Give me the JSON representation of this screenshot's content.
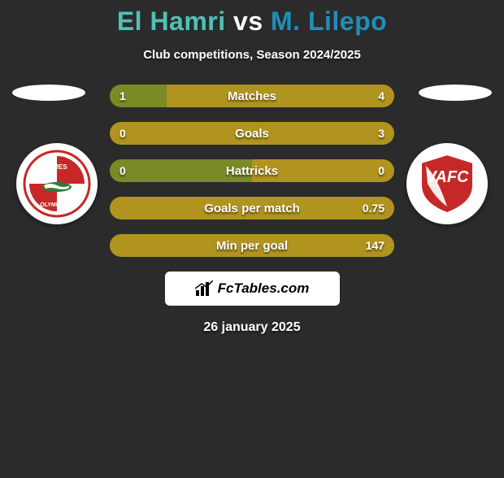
{
  "title": {
    "player1": "El Hamri",
    "vs": "vs",
    "player2": "M. Lilepo",
    "player1_color": "#51c1b6",
    "player2_color": "#1f8fb8",
    "vs_color": "#ffffff"
  },
  "subtitle": "Club competitions, Season 2024/2025",
  "indicator_left_color": "#ffffff",
  "indicator_right_color": "#ffffff",
  "bar_colors": {
    "left": "#7a8a24",
    "right": "#b0941f"
  },
  "stats": [
    {
      "label": "Matches",
      "left_val": "1",
      "right_val": "4",
      "left_pct": 20,
      "right_pct": 80
    },
    {
      "label": "Goals",
      "left_val": "0",
      "right_val": "3",
      "left_pct": 0,
      "right_pct": 100
    },
    {
      "label": "Hattricks",
      "left_val": "0",
      "right_val": "0",
      "left_pct": 50,
      "right_pct": 50
    },
    {
      "label": "Goals per match",
      "left_val": "",
      "right_val": "0.75",
      "left_pct": 0,
      "right_pct": 100
    },
    {
      "label": "Min per goal",
      "left_val": "",
      "right_val": "147",
      "left_pct": 0,
      "right_pct": 100
    }
  ],
  "team_left": {
    "name": "Nimes Olympique",
    "primary": "#c62828",
    "secondary": "#ffffff"
  },
  "team_right": {
    "name": "VAFC",
    "primary": "#c62828",
    "secondary": "#ffffff"
  },
  "branding": {
    "text": "FcTables.com"
  },
  "date": "26 january 2025",
  "background_color": "#2b2b2b"
}
